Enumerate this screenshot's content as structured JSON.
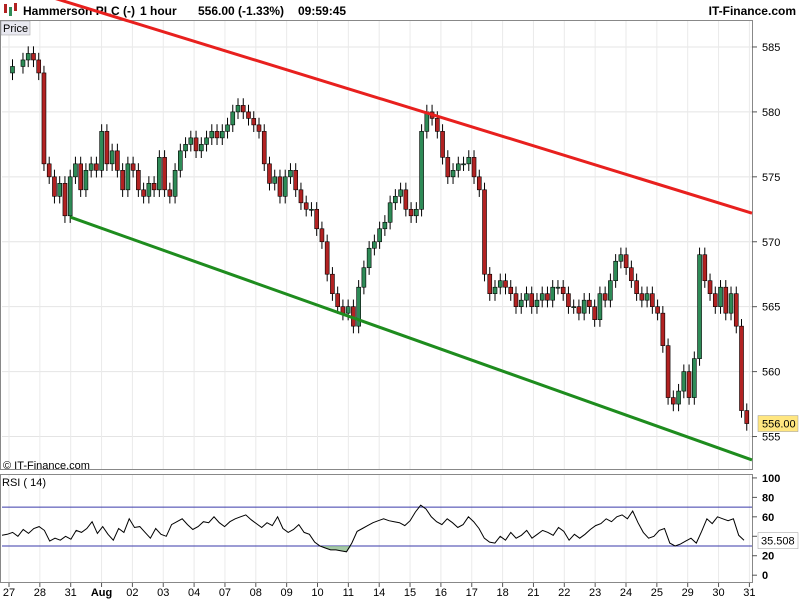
{
  "header": {
    "instrument": "Hammerson PLC (-)",
    "timeframe": "1 hour",
    "price_change": "556.00 (-1.33%)",
    "time": "09:59:45",
    "brand": "IT-Finance.com"
  },
  "price_panel": {
    "label": "Price",
    "watermark": "© IT-Finance.com",
    "last_price_label": "556.00"
  },
  "rsi_panel": {
    "label": "RSI ( 14)",
    "current_label": "35.508"
  },
  "colors": {
    "up_candle": "#2e8b57",
    "down_candle": "#b22222",
    "resistance": "#e8201e",
    "support": "#1e8c1e",
    "rsi_band": "#3a3aaa",
    "rsi_line": "#000000",
    "last_price_bg": "#ffe680"
  },
  "chart_data": [
    {
      "type": "candlestick",
      "title": "Hammerson PLC (-) 1 hour",
      "ylabel": "Price",
      "ylim": [
        552.5,
        587
      ],
      "yticks": [
        555,
        560,
        565,
        570,
        575,
        580,
        585
      ],
      "xticks": [
        "27",
        "28",
        "31",
        "Aug",
        "02",
        "03",
        "04",
        "07",
        "08",
        "09",
        "10",
        "11",
        "14",
        "15",
        "16",
        "17",
        "18",
        "21",
        "22",
        "23",
        "24",
        "25",
        "29",
        "30",
        "31"
      ],
      "grid": true,
      "close_path": [
        [
          0,
          583
        ],
        [
          2,
          583.5
        ],
        [
          4,
          584
        ],
        [
          5,
          584.5
        ],
        [
          6,
          584
        ],
        [
          7,
          583
        ],
        [
          8,
          576
        ],
        [
          9,
          575
        ],
        [
          10,
          573.5
        ],
        [
          11,
          574.5
        ],
        [
          12,
          572
        ],
        [
          13,
          575
        ],
        [
          14,
          576
        ],
        [
          15,
          574
        ],
        [
          16,
          575.5
        ],
        [
          17,
          576
        ],
        [
          18,
          575.5
        ],
        [
          19,
          578.5
        ],
        [
          20,
          576
        ],
        [
          21,
          577
        ],
        [
          22,
          575.5
        ],
        [
          23,
          574
        ],
        [
          24,
          576
        ],
        [
          25,
          575.5
        ],
        [
          26,
          574
        ],
        [
          27,
          573.5
        ],
        [
          28,
          574.5
        ],
        [
          29,
          574
        ],
        [
          30,
          576.5
        ],
        [
          31,
          574
        ],
        [
          32,
          573.5
        ],
        [
          33,
          575.5
        ],
        [
          34,
          577
        ],
        [
          35,
          577.5
        ],
        [
          36,
          578
        ],
        [
          37,
          577
        ],
        [
          38,
          577.5
        ],
        [
          39,
          578
        ],
        [
          40,
          578.5
        ],
        [
          41,
          578
        ],
        [
          42,
          578.5
        ],
        [
          43,
          579
        ],
        [
          44,
          580
        ],
        [
          45,
          580.5
        ],
        [
          46,
          580
        ],
        [
          47,
          579.5
        ],
        [
          48,
          579
        ],
        [
          49,
          578.5
        ],
        [
          50,
          576
        ],
        [
          51,
          574.5
        ],
        [
          52,
          575
        ],
        [
          53,
          573.5
        ],
        [
          54,
          575
        ],
        [
          55,
          575.5
        ],
        [
          56,
          574
        ],
        [
          57,
          573
        ],
        [
          58,
          572.5
        ],
        [
          59,
          572.5
        ],
        [
          60,
          571
        ],
        [
          61,
          570
        ],
        [
          62,
          567.5
        ],
        [
          63,
          566
        ],
        [
          64,
          565
        ],
        [
          65,
          564.5
        ],
        [
          66,
          565
        ],
        [
          67,
          563.5
        ],
        [
          68,
          566.5
        ],
        [
          69,
          568
        ],
        [
          70,
          569.5
        ],
        [
          71,
          570
        ],
        [
          72,
          571
        ],
        [
          73,
          571.5
        ],
        [
          74,
          573
        ],
        [
          75,
          573.5
        ],
        [
          76,
          574
        ],
        [
          77,
          572.5
        ],
        [
          78,
          572
        ],
        [
          79,
          572.5
        ],
        [
          80,
          578.5
        ],
        [
          81,
          580
        ],
        [
          82,
          579.5
        ],
        [
          83,
          578.5
        ],
        [
          84,
          576.5
        ],
        [
          85,
          575
        ],
        [
          86,
          575.5
        ],
        [
          87,
          576
        ],
        [
          88,
          576
        ],
        [
          89,
          576.5
        ],
        [
          90,
          575
        ],
        [
          91,
          574
        ],
        [
          92,
          567.5
        ],
        [
          93,
          566
        ],
        [
          94,
          566.5
        ],
        [
          95,
          567
        ],
        [
          96,
          566.5
        ],
        [
          97,
          566
        ],
        [
          98,
          565
        ],
        [
          99,
          565.5
        ],
        [
          100,
          566
        ],
        [
          101,
          565
        ],
        [
          102,
          565.5
        ],
        [
          103,
          566
        ],
        [
          104,
          565.5
        ],
        [
          105,
          566.5
        ],
        [
          106,
          566.5
        ],
        [
          107,
          566
        ],
        [
          108,
          565
        ],
        [
          109,
          565
        ],
        [
          110,
          564.5
        ],
        [
          111,
          565.5
        ],
        [
          112,
          565
        ],
        [
          113,
          564
        ],
        [
          114,
          566
        ],
        [
          115,
          565.5
        ],
        [
          116,
          567
        ],
        [
          117,
          568.5
        ],
        [
          118,
          569
        ],
        [
          119,
          568
        ],
        [
          120,
          567
        ],
        [
          121,
          566
        ],
        [
          122,
          565.5
        ],
        [
          123,
          566
        ],
        [
          124,
          565
        ],
        [
          125,
          564.5
        ],
        [
          126,
          562
        ],
        [
          127,
          558
        ],
        [
          128,
          557.5
        ],
        [
          129,
          558.5
        ],
        [
          130,
          560
        ],
        [
          131,
          558
        ],
        [
          132,
          561
        ],
        [
          133,
          569
        ],
        [
          134,
          567
        ],
        [
          135,
          566
        ],
        [
          136,
          565
        ],
        [
          137,
          566.5
        ],
        [
          138,
          564.5
        ],
        [
          139,
          566
        ],
        [
          140,
          563.5
        ],
        [
          141,
          557
        ],
        [
          142,
          556
        ]
      ],
      "resistance_line": {
        "start": [
          0,
          590
        ],
        "end": [
          143,
          572.2
        ]
      },
      "support_line": {
        "start": [
          13,
          571.9
        ],
        "end": [
          143,
          553.2
        ]
      },
      "last_price": 556.0
    },
    {
      "type": "line",
      "title": "RSI ( 14)",
      "ylim": [
        0,
        100
      ],
      "yticks": [
        0,
        20,
        40,
        60,
        80,
        100
      ],
      "bands": [
        30,
        70
      ],
      "series": [
        {
          "values": [
            41,
            42,
            44,
            40,
            47,
            43,
            48,
            50,
            46,
            35,
            38,
            36,
            40,
            37,
            46,
            44,
            48,
            55,
            43,
            50,
            42,
            36,
            48,
            44,
            58,
            49,
            50,
            44,
            38,
            48,
            42,
            40,
            52,
            55,
            58,
            52,
            47,
            50,
            55,
            54,
            60,
            54,
            50,
            55,
            58,
            60,
            62,
            57,
            53,
            49,
            54,
            51,
            60,
            48,
            44,
            47,
            52,
            44,
            42,
            34,
            30,
            28,
            26,
            26,
            25,
            24,
            33,
            45,
            48,
            51,
            54,
            56,
            58,
            56,
            55,
            54,
            51,
            56,
            65,
            72,
            68,
            60,
            55,
            52,
            58,
            54,
            49,
            52,
            60,
            55,
            48,
            38,
            34,
            33,
            40,
            36,
            44,
            38,
            41,
            46,
            38,
            42,
            46,
            44,
            41,
            49,
            45,
            36,
            42,
            38,
            42,
            47,
            51,
            53,
            58,
            55,
            60,
            62,
            58,
            66,
            54,
            44,
            38,
            40,
            46,
            48,
            33,
            30,
            32,
            35,
            38,
            33,
            45,
            58,
            53,
            60,
            58,
            56,
            58,
            41,
            36
          ]
        }
      ],
      "current_value": 35.508
    }
  ]
}
